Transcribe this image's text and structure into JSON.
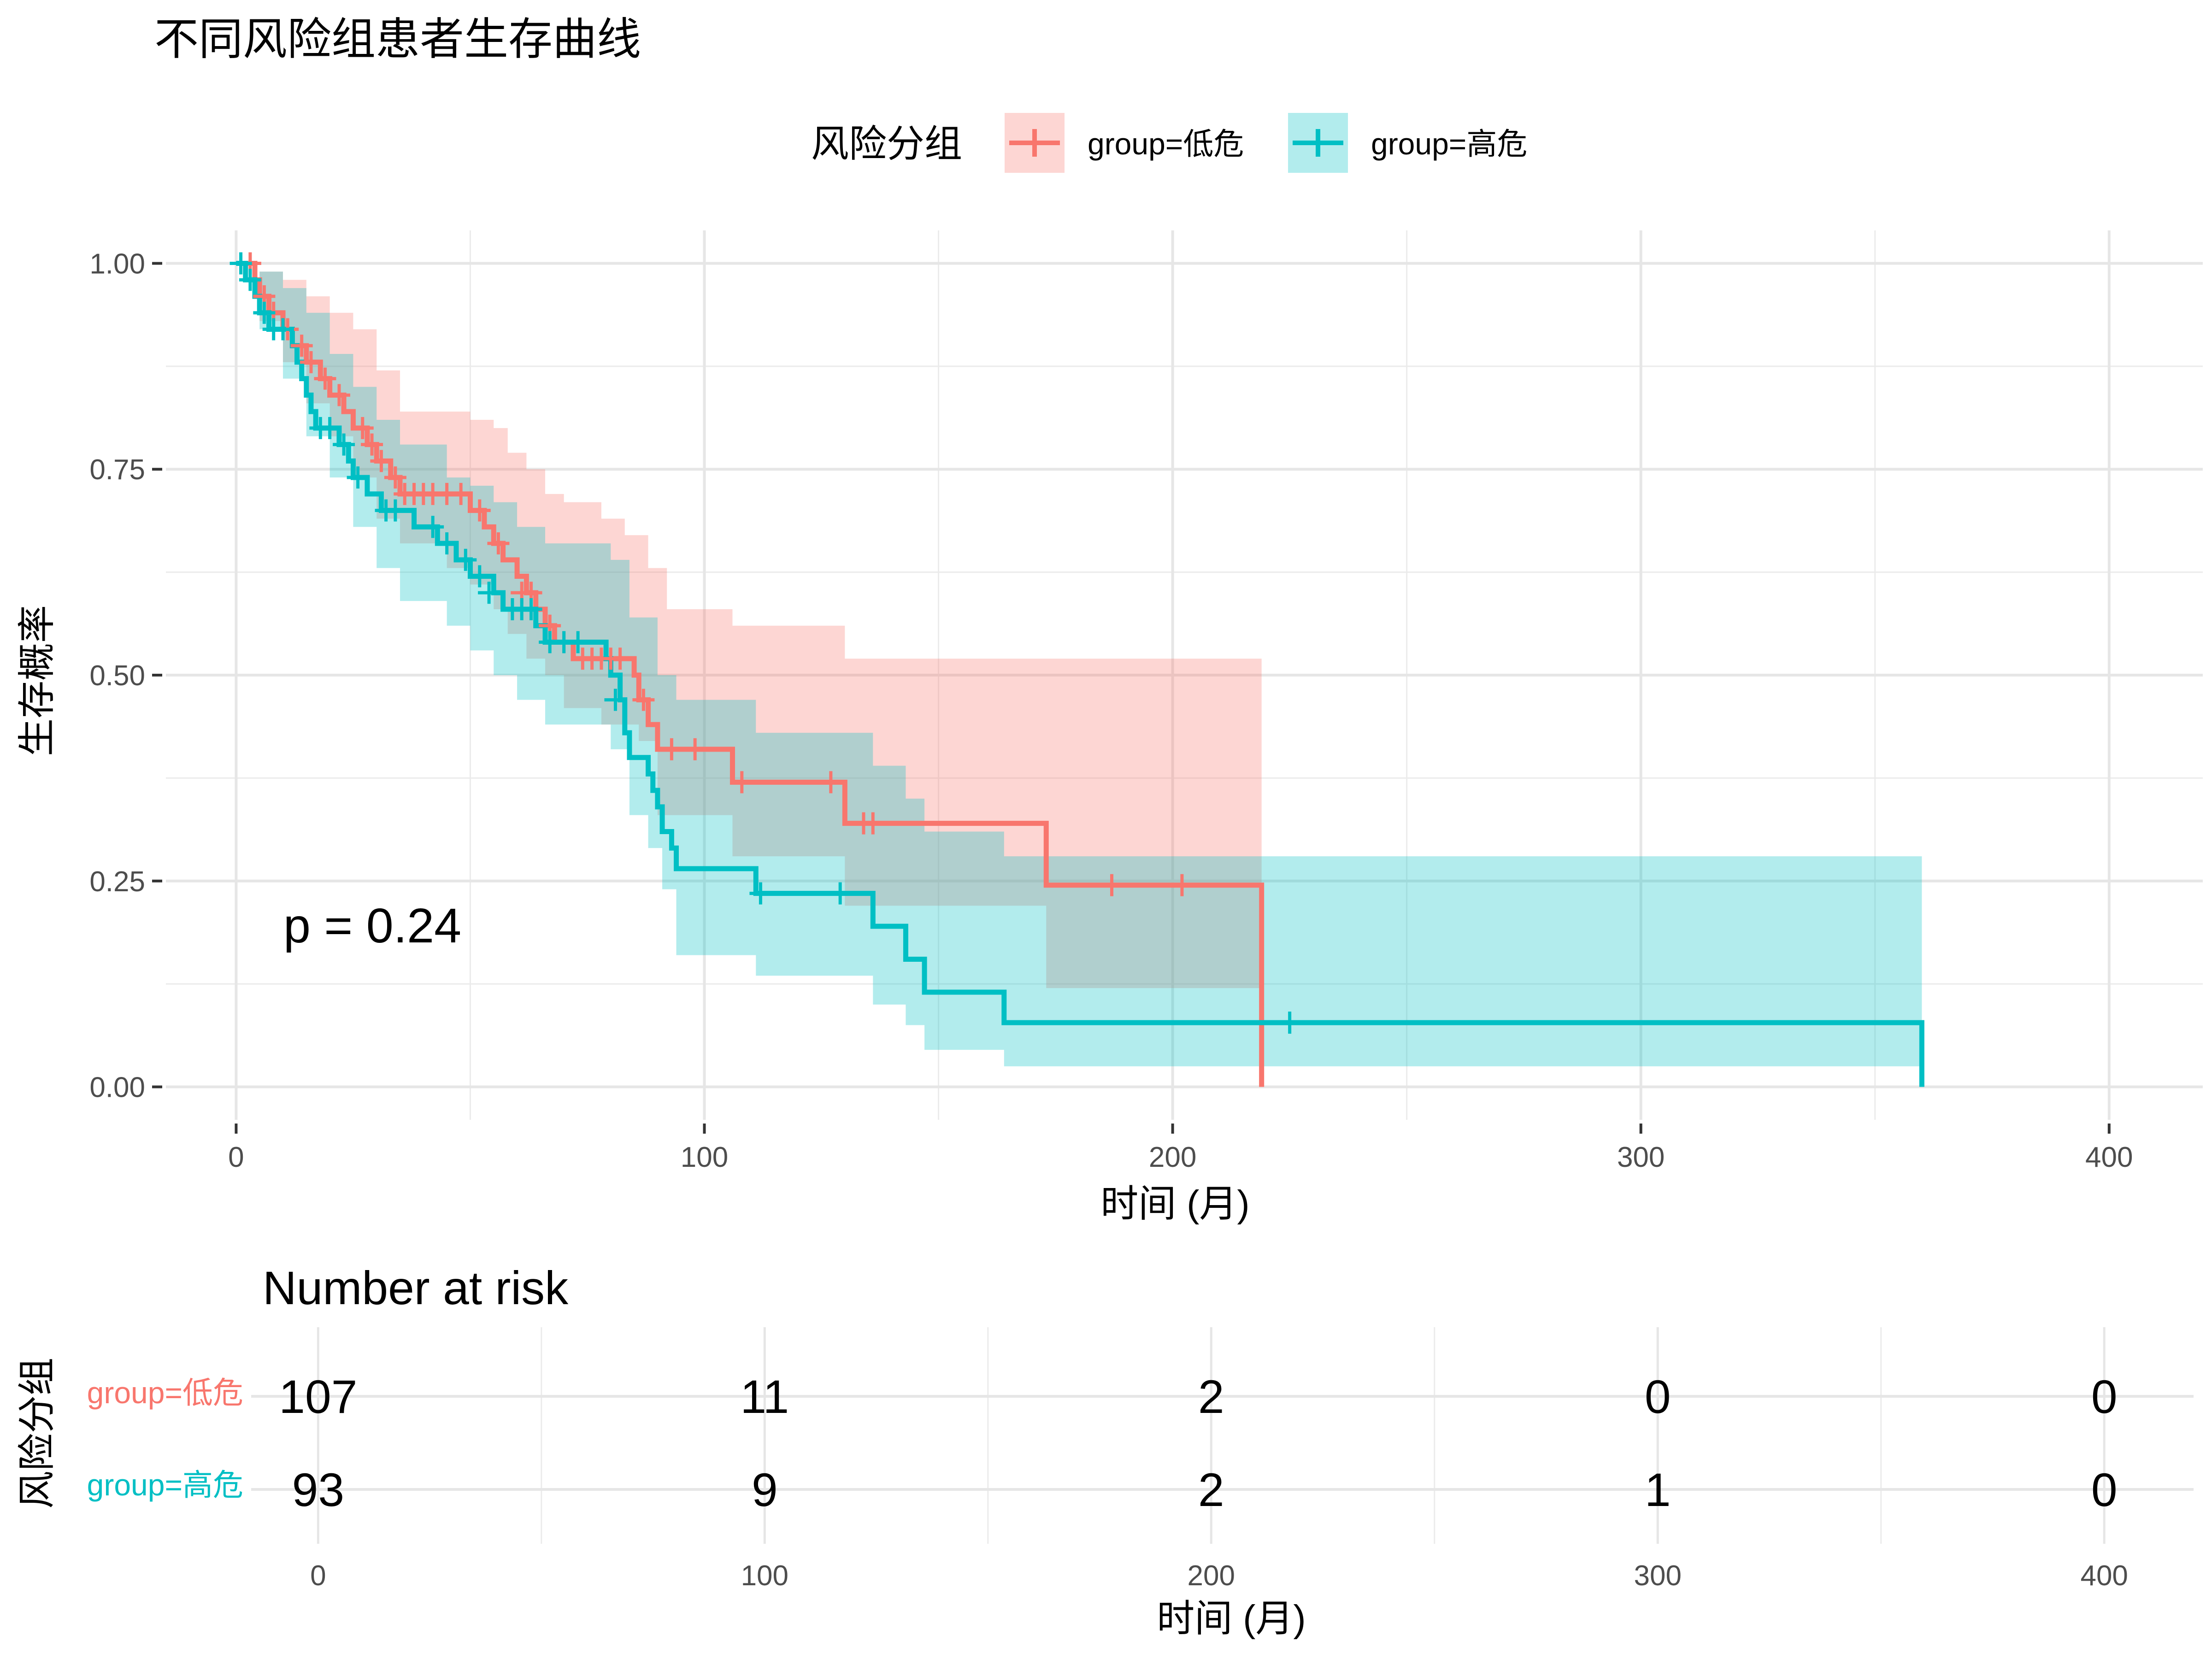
{
  "title": "不同风险组患者生存曲线",
  "legend": {
    "title": "风险分组",
    "items": [
      {
        "label": "group=低危",
        "color": "#F8766D"
      },
      {
        "label": "group=高危",
        "color": "#00BFC4"
      }
    ]
  },
  "p_value_label": "p = 0.24",
  "risk_table": {
    "title": "Number at risk",
    "ylabel": "风险分组",
    "xlabel": "时间 (月)",
    "times": [
      0,
      100,
      200,
      300,
      400
    ],
    "rows": [
      {
        "label": "group=低危",
        "color": "#F8766D",
        "values": [
          107,
          11,
          2,
          0,
          0
        ]
      },
      {
        "label": "group=高危",
        "color": "#00BFC4",
        "values": [
          93,
          9,
          2,
          1,
          0
        ]
      }
    ]
  },
  "chart_data": {
    "type": "line",
    "subtype": "kaplan-meier step",
    "title": "不同风险组患者生存曲线",
    "xlabel": "时间 (月)",
    "ylabel": "生存概率",
    "xlim": [
      -15,
      420
    ],
    "ylim": [
      -0.04,
      1.04
    ],
    "xticks": [
      0,
      100,
      200,
      300,
      400
    ],
    "yticks": [
      0.0,
      0.25,
      0.5,
      0.75,
      1.0
    ],
    "ytick_labels": [
      "0.00",
      "0.25",
      "0.50",
      "0.75",
      "1.00"
    ],
    "grid": true,
    "legend_position": "top",
    "series": [
      {
        "name": "group=低危",
        "color": "#F8766D",
        "steps": [
          [
            0,
            1.0
          ],
          [
            4,
            0.98
          ],
          [
            5,
            0.96
          ],
          [
            7,
            0.94
          ],
          [
            10,
            0.92
          ],
          [
            12,
            0.9
          ],
          [
            15,
            0.88
          ],
          [
            18,
            0.86
          ],
          [
            20,
            0.84
          ],
          [
            23,
            0.82
          ],
          [
            25,
            0.8
          ],
          [
            28,
            0.78
          ],
          [
            30,
            0.76
          ],
          [
            33,
            0.74
          ],
          [
            35,
            0.72
          ],
          [
            50,
            0.7
          ],
          [
            53,
            0.68
          ],
          [
            55,
            0.66
          ],
          [
            57,
            0.64
          ],
          [
            60,
            0.62
          ],
          [
            62,
            0.6
          ],
          [
            64,
            0.58
          ],
          [
            66,
            0.56
          ],
          [
            68,
            0.54
          ],
          [
            72,
            0.52
          ],
          [
            85,
            0.5
          ],
          [
            86,
            0.47
          ],
          [
            88,
            0.44
          ],
          [
            90,
            0.41
          ],
          [
            106,
            0.37
          ],
          [
            130,
            0.32
          ],
          [
            173,
            0.245
          ],
          [
            219,
            0.0
          ]
        ],
        "end": 219,
        "censor": [
          [
            3,
            1.0
          ],
          [
            6,
            0.96
          ],
          [
            8,
            0.94
          ],
          [
            11,
            0.92
          ],
          [
            14,
            0.9
          ],
          [
            16,
            0.88
          ],
          [
            19,
            0.86
          ],
          [
            22,
            0.84
          ],
          [
            27,
            0.8
          ],
          [
            29,
            0.78
          ],
          [
            31,
            0.76
          ],
          [
            34,
            0.74
          ],
          [
            36,
            0.72
          ],
          [
            38,
            0.72
          ],
          [
            40,
            0.72
          ],
          [
            42,
            0.72
          ],
          [
            45,
            0.72
          ],
          [
            48,
            0.72
          ],
          [
            52,
            0.7
          ],
          [
            56,
            0.66
          ],
          [
            61,
            0.6
          ],
          [
            63,
            0.6
          ],
          [
            67,
            0.56
          ],
          [
            70,
            0.54
          ],
          [
            74,
            0.52
          ],
          [
            76,
            0.52
          ],
          [
            78,
            0.52
          ],
          [
            80,
            0.52
          ],
          [
            82,
            0.52
          ],
          [
            87,
            0.47
          ],
          [
            93,
            0.41
          ],
          [
            98,
            0.41
          ],
          [
            108,
            0.37
          ],
          [
            127,
            0.37
          ],
          [
            134,
            0.32
          ],
          [
            136,
            0.32
          ],
          [
            187,
            0.245
          ],
          [
            202,
            0.245
          ]
        ],
        "ci_upper": [
          [
            0,
            1.0
          ],
          [
            5,
            0.99
          ],
          [
            10,
            0.98
          ],
          [
            15,
            0.96
          ],
          [
            20,
            0.94
          ],
          [
            25,
            0.92
          ],
          [
            30,
            0.87
          ],
          [
            35,
            0.82
          ],
          [
            45,
            0.82
          ],
          [
            50,
            0.81
          ],
          [
            55,
            0.8
          ],
          [
            58,
            0.77
          ],
          [
            62,
            0.75
          ],
          [
            66,
            0.72
          ],
          [
            70,
            0.71
          ],
          [
            78,
            0.69
          ],
          [
            83,
            0.67
          ],
          [
            88,
            0.63
          ],
          [
            92,
            0.58
          ],
          [
            106,
            0.56
          ],
          [
            130,
            0.52
          ],
          [
            219,
            0.52
          ]
        ],
        "ci_lower": [
          [
            0,
            1.0
          ],
          [
            5,
            0.93
          ],
          [
            10,
            0.88
          ],
          [
            15,
            0.83
          ],
          [
            20,
            0.79
          ],
          [
            25,
            0.74
          ],
          [
            30,
            0.69
          ],
          [
            35,
            0.66
          ],
          [
            45,
            0.63
          ],
          [
            50,
            0.61
          ],
          [
            55,
            0.58
          ],
          [
            58,
            0.55
          ],
          [
            62,
            0.52
          ],
          [
            66,
            0.5
          ],
          [
            70,
            0.46
          ],
          [
            78,
            0.44
          ],
          [
            86,
            0.42
          ],
          [
            90,
            0.33
          ],
          [
            106,
            0.28
          ],
          [
            130,
            0.22
          ],
          [
            173,
            0.12
          ],
          [
            219,
            0.12
          ]
        ]
      },
      {
        "name": "group=高危",
        "color": "#00BFC4",
        "steps": [
          [
            0,
            1.0
          ],
          [
            2,
            0.98
          ],
          [
            4,
            0.96
          ],
          [
            5,
            0.94
          ],
          [
            7,
            0.92
          ],
          [
            12,
            0.9
          ],
          [
            13,
            0.88
          ],
          [
            14,
            0.86
          ],
          [
            15,
            0.84
          ],
          [
            16,
            0.82
          ],
          [
            17,
            0.8
          ],
          [
            22,
            0.78
          ],
          [
            24,
            0.76
          ],
          [
            25,
            0.74
          ],
          [
            28,
            0.72
          ],
          [
            31,
            0.7
          ],
          [
            38,
            0.68
          ],
          [
            43,
            0.66
          ],
          [
            47,
            0.64
          ],
          [
            50,
            0.62
          ],
          [
            55,
            0.6
          ],
          [
            57,
            0.58
          ],
          [
            64,
            0.56
          ],
          [
            66,
            0.54
          ],
          [
            79,
            0.52
          ],
          [
            80,
            0.5
          ],
          [
            82,
            0.47
          ],
          [
            83,
            0.43
          ],
          [
            84,
            0.4
          ],
          [
            88,
            0.38
          ],
          [
            89,
            0.36
          ],
          [
            90,
            0.34
          ],
          [
            91,
            0.31
          ],
          [
            93,
            0.29
          ],
          [
            94,
            0.265
          ],
          [
            111,
            0.235
          ],
          [
            136,
            0.195
          ],
          [
            143,
            0.155
          ],
          [
            147,
            0.115
          ],
          [
            164,
            0.078
          ],
          [
            360,
            0.078
          ],
          [
            360,
            0.0
          ]
        ],
        "end": 360,
        "censor": [
          [
            1,
            1.0
          ],
          [
            3,
            0.98
          ],
          [
            6,
            0.94
          ],
          [
            8,
            0.92
          ],
          [
            10,
            0.92
          ],
          [
            18,
            0.8
          ],
          [
            20,
            0.8
          ],
          [
            23,
            0.78
          ],
          [
            26,
            0.74
          ],
          [
            32,
            0.7
          ],
          [
            34,
            0.7
          ],
          [
            42,
            0.68
          ],
          [
            45,
            0.66
          ],
          [
            49,
            0.64
          ],
          [
            52,
            0.62
          ],
          [
            54,
            0.6
          ],
          [
            59,
            0.58
          ],
          [
            61,
            0.58
          ],
          [
            63,
            0.58
          ],
          [
            67,
            0.54
          ],
          [
            70,
            0.54
          ],
          [
            73,
            0.54
          ],
          [
            81,
            0.47
          ],
          [
            112,
            0.235
          ],
          [
            129,
            0.235
          ],
          [
            225,
            0.078
          ]
        ],
        "ci_upper": [
          [
            0,
            1.0
          ],
          [
            5,
            0.99
          ],
          [
            10,
            0.97
          ],
          [
            15,
            0.94
          ],
          [
            20,
            0.89
          ],
          [
            25,
            0.85
          ],
          [
            30,
            0.81
          ],
          [
            35,
            0.78
          ],
          [
            45,
            0.74
          ],
          [
            50,
            0.73
          ],
          [
            55,
            0.71
          ],
          [
            60,
            0.68
          ],
          [
            66,
            0.66
          ],
          [
            80,
            0.64
          ],
          [
            84,
            0.57
          ],
          [
            90,
            0.5
          ],
          [
            94,
            0.47
          ],
          [
            111,
            0.43
          ],
          [
            136,
            0.39
          ],
          [
            143,
            0.35
          ],
          [
            147,
            0.31
          ],
          [
            164,
            0.28
          ],
          [
            360,
            0.28
          ]
        ],
        "ci_lower": [
          [
            0,
            1.0
          ],
          [
            5,
            0.92
          ],
          [
            10,
            0.86
          ],
          [
            15,
            0.79
          ],
          [
            20,
            0.74
          ],
          [
            25,
            0.68
          ],
          [
            30,
            0.63
          ],
          [
            35,
            0.59
          ],
          [
            45,
            0.56
          ],
          [
            50,
            0.53
          ],
          [
            55,
            0.5
          ],
          [
            60,
            0.47
          ],
          [
            66,
            0.44
          ],
          [
            80,
            0.41
          ],
          [
            84,
            0.33
          ],
          [
            88,
            0.29
          ],
          [
            91,
            0.24
          ],
          [
            94,
            0.16
          ],
          [
            111,
            0.135
          ],
          [
            136,
            0.1
          ],
          [
            143,
            0.075
          ],
          [
            147,
            0.045
          ],
          [
            164,
            0.025
          ],
          [
            360,
            0.025
          ]
        ]
      }
    ]
  }
}
